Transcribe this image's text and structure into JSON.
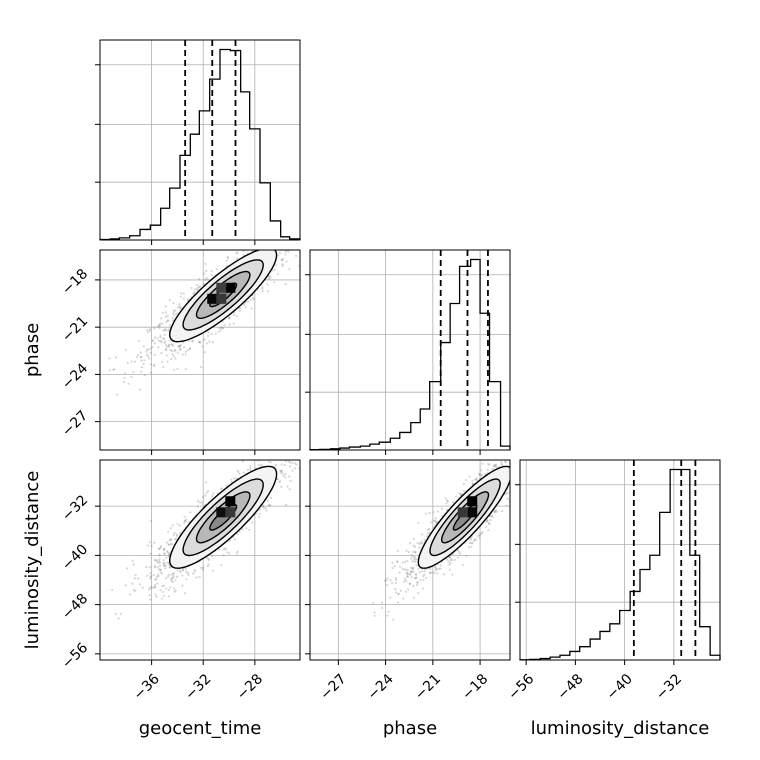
{
  "chart_data": {
    "type": "corner",
    "parameters": [
      "geocent_time",
      "phase",
      "luminosity_distance"
    ],
    "ranges": {
      "geocent_time": [
        -40,
        -24.5
      ],
      "phase": [
        -28.8,
        -16.1
      ],
      "luminosity_distance": [
        -57,
        -24.5
      ]
    },
    "ticks": {
      "geocent_time": [
        -36,
        -32,
        -28
      ],
      "phase": [
        -27,
        -24,
        -21,
        -18
      ],
      "luminosity_distance": [
        -56,
        -48,
        -40,
        -32
      ]
    },
    "tick_labels": {
      "geocent_time": [
        "−36",
        "−32",
        "−28"
      ],
      "phase": [
        "−27",
        "−24",
        "−21",
        "−18"
      ],
      "luminosity_distance": [
        "−56",
        "−48",
        "−40",
        "−32"
      ]
    },
    "quantiles": {
      "geocent_time": [
        -33.4,
        -31.3,
        -29.5
      ],
      "phase": [
        -20.5,
        -18.8,
        -17.5
      ],
      "luminosity_distance": [
        -38.5,
        -30.8,
        -28.5
      ]
    },
    "histograms": {
      "geocent_time": {
        "edges": [
          -40,
          -39.2,
          -38.5,
          -37.7,
          -36.9,
          -36.1,
          -35.3,
          -34.6,
          -33.8,
          -33,
          -32.3,
          -31.5,
          -30.7,
          -29.9,
          -29.1,
          -28.4,
          -27.6,
          -26.8,
          -26,
          -25.3,
          -24.5
        ],
        "counts": [
          0.5,
          1,
          2,
          4,
          10,
          14,
          30,
          49,
          80,
          100,
          122,
          152,
          180,
          179,
          140,
          105,
          54,
          18,
          3,
          1
        ]
      },
      "phase": {
        "edges": [
          -28.8,
          -28.2,
          -27.5,
          -26.9,
          -26.3,
          -25.6,
          -25,
          -24.4,
          -23.7,
          -23.1,
          -22.4,
          -21.8,
          -21.2,
          -20.5,
          -19.9,
          -19.3,
          -18.6,
          -18,
          -17.4,
          -16.7,
          -16.1
        ],
        "counts": [
          0.3,
          0.6,
          1.2,
          2,
          3,
          4,
          6,
          8,
          12,
          18,
          28,
          42,
          70,
          110,
          150,
          188,
          195,
          140,
          70,
          4
        ]
      },
      "luminosity_distance": {
        "edges": [
          -57,
          -55.4,
          -53.7,
          -52.1,
          -50.5,
          -48.9,
          -47.3,
          -45.6,
          -44,
          -42.4,
          -40.8,
          -39.1,
          -37.5,
          -35.9,
          -34.3,
          -32.6,
          -31,
          -29.4,
          -27.8,
          -26.1,
          -24.5
        ],
        "counts": [
          0.3,
          0.6,
          1.5,
          3,
          5,
          9,
          14,
          22,
          30,
          38,
          52,
          72,
          95,
          110,
          155,
          200,
          200,
          110,
          35,
          5
        ]
      }
    },
    "pairs": [
      {
        "x": "geocent_time",
        "y": "phase",
        "mean": [
          -30.8,
          -19.2
        ],
        "sd": [
          2.3,
          1.65
        ],
        "corr": 0.85,
        "density_cells": [
          {
            "x": -29.9,
            "y": -18.5,
            "level": 1.0
          },
          {
            "x": -31.3,
            "y": -19.2,
            "level": 0.95
          },
          {
            "x": -30.6,
            "y": -19.2,
            "level": 0.6
          },
          {
            "x": -30.6,
            "y": -18.5,
            "level": 0.55
          }
        ]
      },
      {
        "x": "geocent_time",
        "y": "luminosity_distance",
        "mean": [
          -30.8,
          -34.5
        ],
        "sd": [
          2.3,
          4.6
        ],
        "corr": 0.85,
        "density_cells": [
          {
            "x": -29.9,
            "y": -31.2,
            "level": 1.0
          },
          {
            "x": -30.6,
            "y": -33,
            "level": 0.9
          },
          {
            "x": -29.9,
            "y": -33,
            "level": 0.6
          }
        ]
      },
      {
        "x": "phase",
        "y": "luminosity_distance",
        "mean": [
          -19.2,
          -34.5
        ],
        "sd": [
          1.65,
          4.6
        ],
        "corr": 0.88,
        "density_cells": [
          {
            "x": -18.5,
            "y": -31.2,
            "level": 1.0
          },
          {
            "x": -18.5,
            "y": -33,
            "level": 0.95
          },
          {
            "x": -19.1,
            "y": -33,
            "level": 0.6
          }
        ]
      }
    ],
    "contour_levels_sigma": [
      0.5,
      1.0,
      1.5,
      2.0
    ],
    "n_samples_per_panel": 1500,
    "grid": true
  }
}
